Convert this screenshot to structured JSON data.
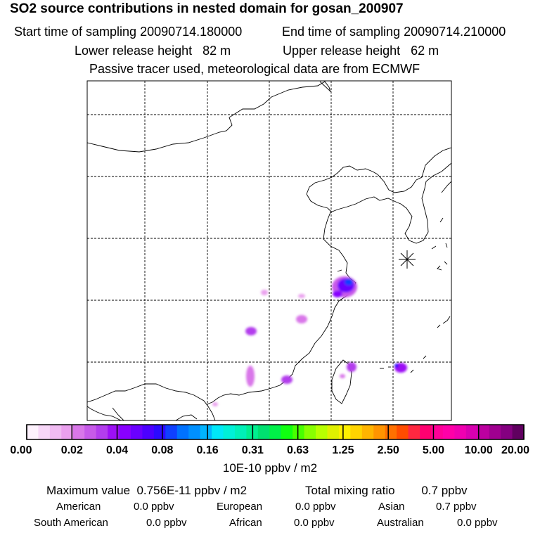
{
  "header": {
    "title": "SO2 source contributions in nested domain for gosan_200907",
    "start_sampling": "Start time of sampling 20090714.180000",
    "end_sampling": "End time of sampling 20090714.210000",
    "lower_release": "Lower release height   82 m",
    "upper_release": "Upper release height   62 m",
    "tracer_note": "Passive tracer used, meteorological data are from ECMWF"
  },
  "map": {
    "receptor_marker": "star-marker"
  },
  "colorbar": {
    "labels": [
      "0.00",
      "0.02",
      "0.04",
      "0.08",
      "0.16",
      "0.31",
      "0.63",
      "1.25",
      "2.50",
      "5.00",
      "10.00",
      "20.00"
    ],
    "units": "10E-10 ppbv / m2",
    "colors": [
      "#fdf2fd",
      "#f7d7f8",
      "#f0bbf2",
      "#eaa0ee",
      "#d977e9",
      "#c75ae9",
      "#b33ded",
      "#9d10f5",
      "#8800ff",
      "#6a00ff",
      "#4c00ff",
      "#2b0aff",
      "#0f40ff",
      "#0072ff",
      "#0090ff",
      "#00b4ff",
      "#00e8f8",
      "#00f0d8",
      "#00f0b8",
      "#00ee90",
      "#00e070",
      "#00f048",
      "#10ff10",
      "#48ff00",
      "#88ff00",
      "#b8ff00",
      "#e0f000",
      "#fff000",
      "#ffd400",
      "#ffb400",
      "#ff9400",
      "#ff7000",
      "#ff4c00",
      "#ff2840",
      "#ff0070",
      "#ff0098",
      "#ff00a8",
      "#f000b0",
      "#d800b0",
      "#bc00a0",
      "#a00090",
      "#840080",
      "#600060"
    ]
  },
  "stats": {
    "max_value": "Maximum value  0.756E-11 ppbv / m2",
    "total_mixing": "Total mixing ratio        0.7 ppbv",
    "contributions": [
      {
        "label": "American",
        "value": "0.0 ppbv"
      },
      {
        "label": "European",
        "value": "0.0 ppbv"
      },
      {
        "label": "Asian",
        "value": "0.7 ppbv"
      },
      {
        "label": "South American",
        "value": "0.0 ppbv"
      },
      {
        "label": "African",
        "value": "0.0 ppbv"
      },
      {
        "label": "Australian",
        "value": "0.0 ppbv"
      }
    ]
  }
}
